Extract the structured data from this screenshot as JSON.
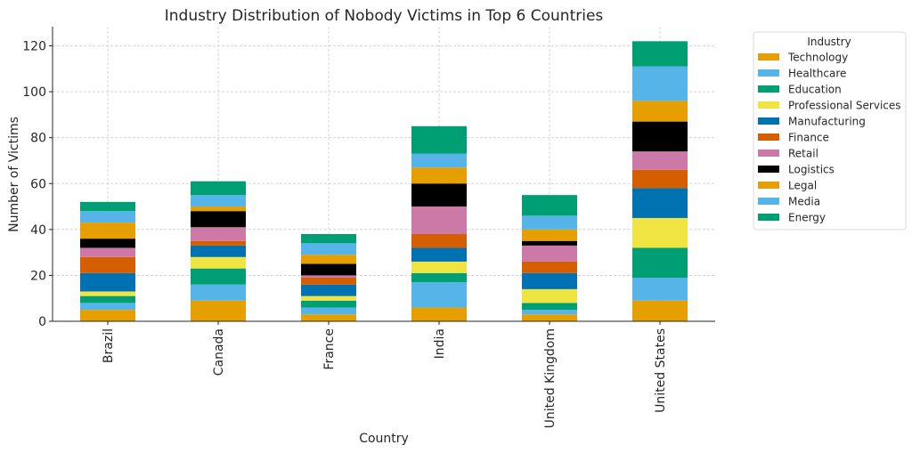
{
  "chart_data": {
    "type": "bar",
    "stacked": true,
    "title": "Industry Distribution of Nobody Victims in Top 6 Countries",
    "xlabel": "Country",
    "ylabel": "Number of Victims",
    "ylim": [
      0,
      128
    ],
    "yticks": [
      0,
      20,
      40,
      60,
      80,
      100,
      120
    ],
    "grid": true,
    "legend_title": "Industry",
    "legend_position": "outside-top-right",
    "categories": [
      "Brazil",
      "Canada",
      "France",
      "India",
      "United Kingdom",
      "United States"
    ],
    "series": [
      {
        "name": "Technology",
        "color": "#E69F00",
        "values": [
          5,
          9,
          3,
          6,
          3,
          9
        ]
      },
      {
        "name": "Healthcare",
        "color": "#56B4E9",
        "values": [
          3,
          7,
          3,
          11,
          2,
          10
        ]
      },
      {
        "name": "Education",
        "color": "#009E73",
        "values": [
          3,
          7,
          3,
          4,
          3,
          13
        ]
      },
      {
        "name": "Professional Services",
        "color": "#F0E442",
        "values": [
          2,
          5,
          2,
          5,
          6,
          13
        ]
      },
      {
        "name": "Manufacturing",
        "color": "#0072B2",
        "values": [
          8,
          5,
          5,
          6,
          7,
          13
        ]
      },
      {
        "name": "Finance",
        "color": "#D55E00",
        "values": [
          7,
          2,
          3,
          6,
          5,
          8
        ]
      },
      {
        "name": "Retail",
        "color": "#CC79A7",
        "values": [
          4,
          6,
          1,
          12,
          7,
          8
        ]
      },
      {
        "name": "Logistics",
        "color": "#000000",
        "values": [
          4,
          7,
          5,
          10,
          2,
          13
        ]
      },
      {
        "name": "Legal",
        "color": "#E69F00",
        "values": [
          7,
          2,
          4,
          7,
          5,
          9
        ]
      },
      {
        "name": "Media",
        "color": "#56B4E9",
        "values": [
          5,
          5,
          5,
          6,
          6,
          15
        ]
      },
      {
        "name": "Energy",
        "color": "#009E73",
        "values": [
          4,
          6,
          4,
          12,
          9,
          11
        ]
      }
    ]
  }
}
